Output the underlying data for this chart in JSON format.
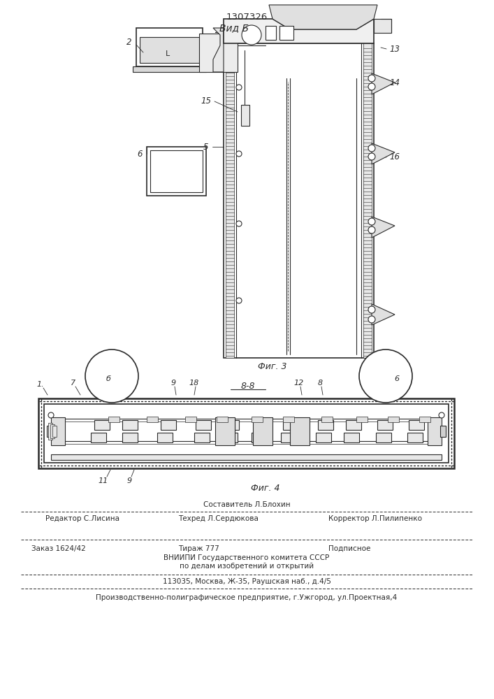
{
  "patent_number": "1307326",
  "fig3_title": "Вид Б",
  "fig3_caption": "Фиг. 3",
  "fig4_caption": "Фиг. 4",
  "footer_line1": "Составитель Л.Блохин",
  "footer_line2_left": "Редактор С.Лисина",
  "footer_line2_mid": "Техред Л.Сердюкова",
  "footer_line2_right": "Корректор Л.Пилипенко",
  "footer_line3_left": "Заказ 1624/42",
  "footer_line3_mid": "Тираж 777",
  "footer_line3_right": "Подписное",
  "footer_line4": "ВНИИПИ Государственного комитета СССР",
  "footer_line5": "по делам изобретений и открытий",
  "footer_line6": "113035, Москва, Ж-35, Раушская наб., д.4/5",
  "footer_line7": "Производственно-полиграфическое предприятие, г.Ужгород, ул.Проектная,4",
  "bg_color": "#ffffff",
  "line_color": "#2a2a2a"
}
